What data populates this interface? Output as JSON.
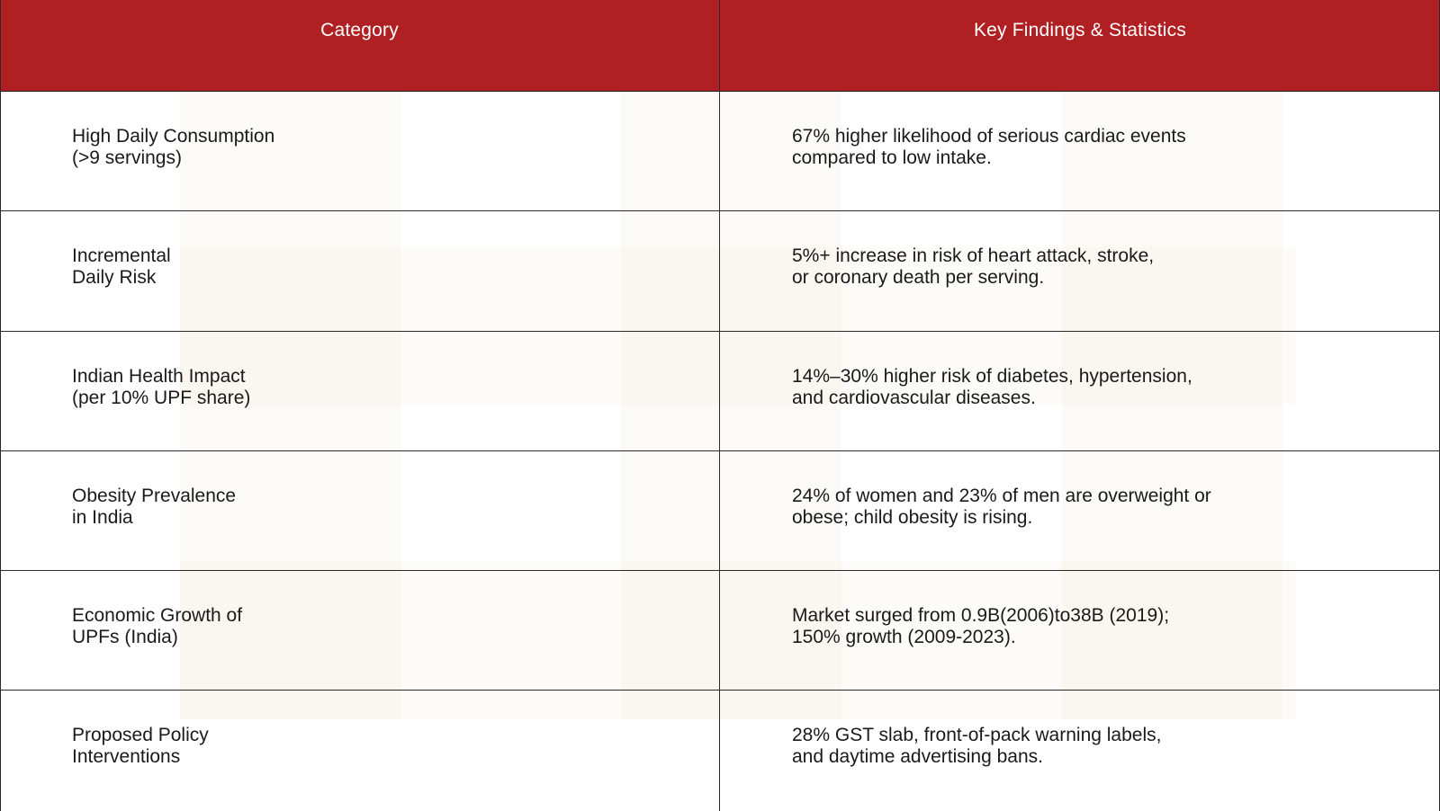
{
  "table": {
    "header": {
      "col1": "Category",
      "col2": "Key Findings & Statistics"
    },
    "rows": [
      {
        "category": "High Daily Consumption\n(>9 servings)",
        "finding": "67% higher likelihood of serious cardiac events\ncompared to low intake."
      },
      {
        "category": "Incremental\nDaily Risk",
        "finding": "5%+ increase in risk of heart attack, stroke,\nor coronary death per serving."
      },
      {
        "category": "Indian Health Impact\n(per 10% UPF share)",
        "finding": "14%–30% higher risk of diabetes, hypertension,\nand cardiovascular diseases."
      },
      {
        "category": "Obesity Prevalence\nin India",
        "finding": "24% of women and 23% of men are overweight or\nobese; child obesity is rising."
      },
      {
        "category": "Economic Growth of\nUPFs (India)",
        "finding": "Market surged from 0.9B(2006)to38B (2019);\n150% growth (2009-2023)."
      },
      {
        "category": "Proposed Policy\nInterventions",
        "finding": "28% GST slab, front-of-pack warning labels,\nand daytime advertising bans."
      }
    ]
  },
  "colors": {
    "header_background": "#b01f22",
    "header_text": "#ffffff",
    "border": "#2a2a2a"
  }
}
